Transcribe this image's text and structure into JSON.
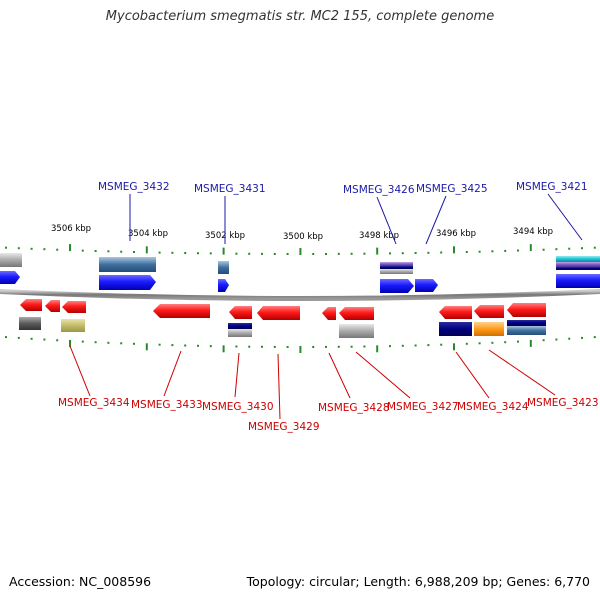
{
  "title": "Mycobacterium smegmatis str. MC2 155, complete genome",
  "footer": {
    "accession": "Accession: NC_008596",
    "summary": "Topology: circular; Length: 6,988,209 bp; Genes: 6,770"
  },
  "scale_labels": [
    "3506 kbp",
    "3504 kbp",
    "3502 kbp",
    "3500 kbp",
    "3498 kbp",
    "3496 kbp",
    "3494 kbp"
  ],
  "genes_top": [
    "MSMEG_3432",
    "MSMEG_3431",
    "MSMEG_3426",
    "MSMEG_3425",
    "MSMEG_3421"
  ],
  "genes_bottom": [
    "MSMEG_3434",
    "MSMEG_3433",
    "MSMEG_3430",
    "MSMEG_3429",
    "MSMEG_3428",
    "MSMEG_3427",
    "MSMEG_3424",
    "MSMEG_3423"
  ],
  "colors": {
    "forward": "#1010ee",
    "reverse": "#ee1010",
    "backbone": "#8a8a8a",
    "tick": "#2a8a2a",
    "label_top": "#1a1aa6",
    "label_bottom": "#cc0000"
  }
}
